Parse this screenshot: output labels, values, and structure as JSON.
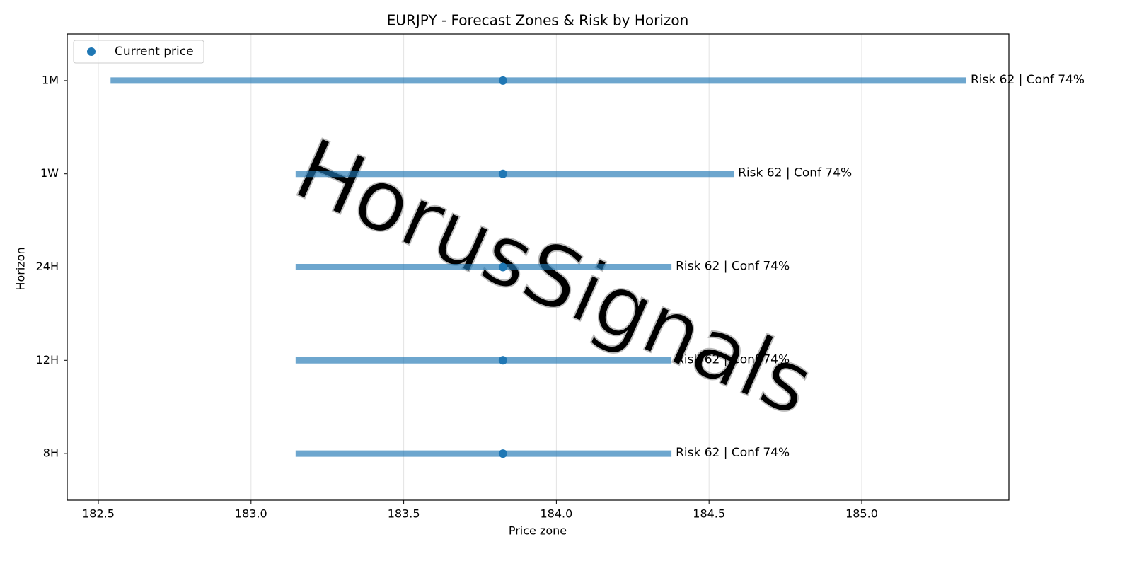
{
  "chart_data": {
    "type": "range",
    "title": "EURJPY - Forecast Zones & Risk by Horizon",
    "x_label": "Price zone",
    "y_label": "Horizon",
    "categories": [
      "1M",
      "1W",
      "24H",
      "12H",
      "8H"
    ],
    "low": [
      182.54,
      183.146,
      183.146,
      183.146,
      183.146
    ],
    "high": [
      185.343,
      184.581,
      184.377,
      184.377,
      184.377
    ],
    "zone_color": "#1f77b4",
    "series": [
      {
        "name": "Current price",
        "color": "#1f77b4",
        "values": [
          183.825,
          183.825,
          183.825,
          183.825,
          183.825
        ]
      }
    ],
    "labels": [
      "Risk 62 | Conf 74%",
      "Risk 62 | Conf 74%",
      "Risk 62 | Conf 74%",
      "Risk 62 | Conf 74%",
      "Risk 62 | Conf 74%"
    ],
    "xlim": [
      182.398,
      185.482
    ],
    "xticks": [
      182.5,
      {
        "value": 183,
        "label": "183.0"
      },
      183.5,
      {
        "value": 184,
        "label": "184.0"
      },
      184.5,
      {
        "value": 185,
        "label": "185.0"
      }
    ],
    "grid": true,
    "legend": "upper left",
    "watermark": "HorusSignals"
  }
}
